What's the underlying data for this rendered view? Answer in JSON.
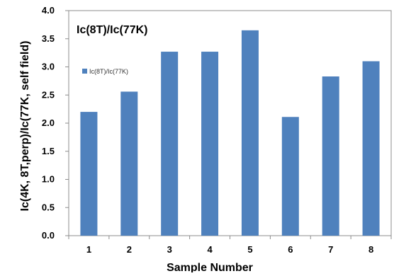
{
  "chart_data": {
    "type": "bar",
    "title": "Ic(8T)/Ic(77K)",
    "xlabel": "Sample Number",
    "ylabel": "Ic(4K, 8T,perp)/Ic(77K, self field)",
    "categories": [
      "1",
      "2",
      "3",
      "4",
      "5",
      "6",
      "7",
      "8"
    ],
    "series": [
      {
        "name": "Ic(8T)/Ic(77K)",
        "color": "#4f81bd",
        "values": [
          2.2,
          2.56,
          3.27,
          3.27,
          3.65,
          2.11,
          2.83,
          3.1
        ]
      }
    ],
    "ylim": [
      0,
      4.0
    ],
    "yticks": [
      "0.0",
      "0.5",
      "1.0",
      "1.5",
      "2.0",
      "2.5",
      "3.0",
      "3.5",
      "4.0"
    ],
    "grid": false,
    "legend": "upper-left"
  }
}
